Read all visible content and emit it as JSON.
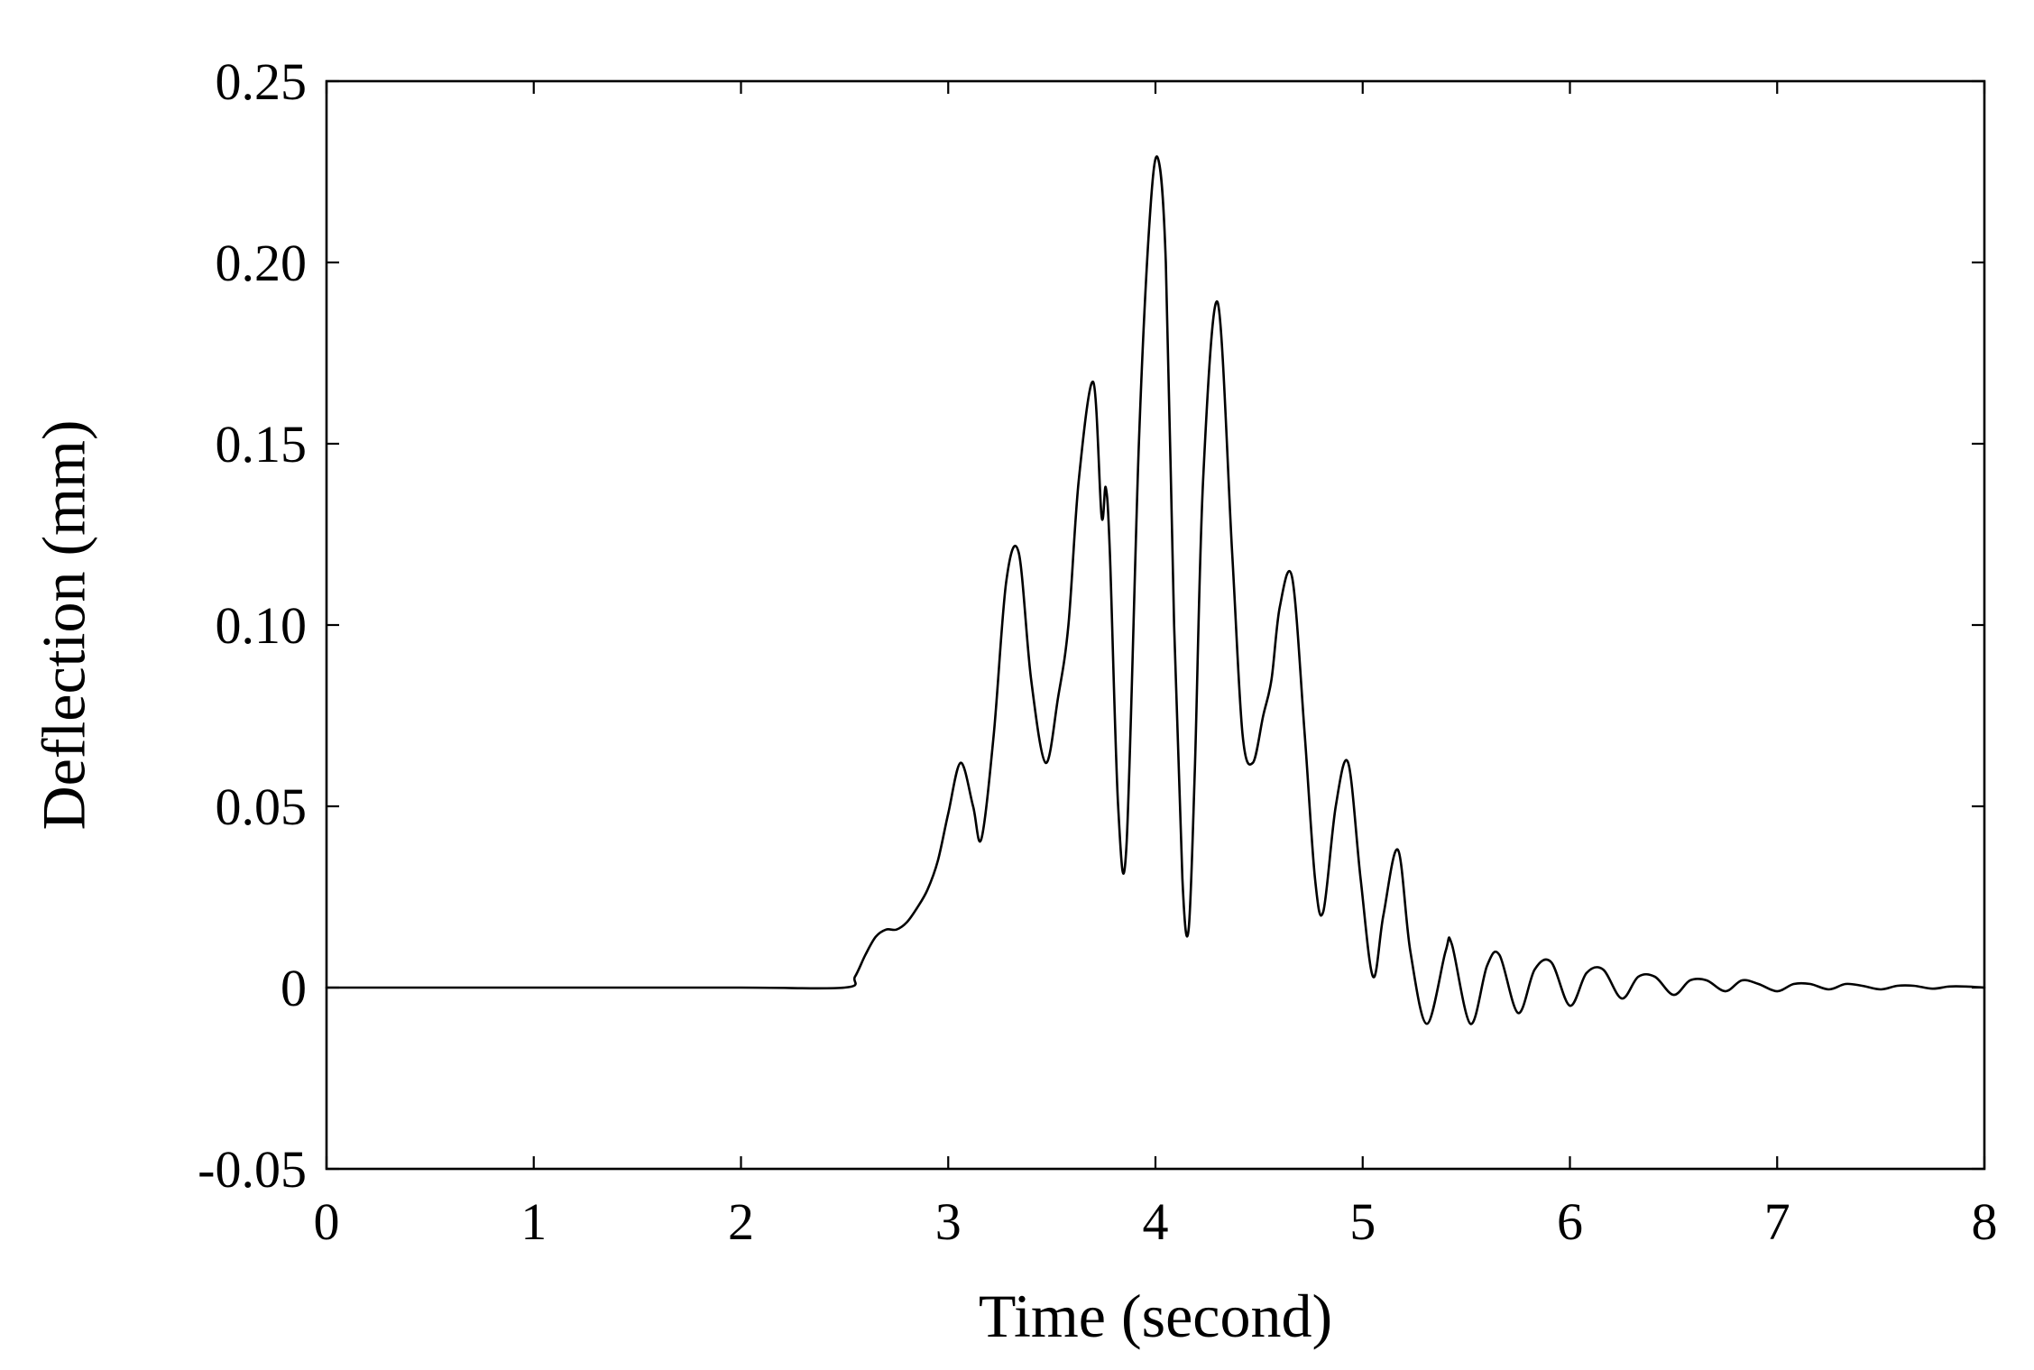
{
  "chart_data": {
    "type": "line",
    "title": "",
    "xlabel": "Time (second)",
    "ylabel": "Deflection (mm)",
    "xlim": [
      0,
      8
    ],
    "ylim": [
      -0.05,
      0.25
    ],
    "grid": false,
    "legend": "none",
    "x_ticks": [
      0,
      1,
      2,
      3,
      4,
      5,
      6,
      7,
      8
    ],
    "x_tick_labels": [
      "0",
      "1",
      "2",
      "3",
      "4",
      "5",
      "6",
      "7",
      "8"
    ],
    "y_ticks": [
      -0.05,
      0,
      0.05,
      0.1,
      0.15,
      0.2,
      0.25
    ],
    "y_tick_labels": [
      "-0.05",
      "0",
      "0.05",
      "0.10",
      "0.15",
      "0.20",
      "0.25"
    ],
    "colors": {
      "line": "#000000",
      "axes": "#000000",
      "background": "#ffffff"
    },
    "series": [
      {
        "x": [
          0,
          1.0,
          2.0,
          2.5,
          2.55,
          2.6,
          2.65,
          2.7,
          2.75,
          2.8,
          2.85,
          2.9,
          2.95,
          3.0,
          3.06,
          3.12,
          3.16,
          3.22,
          3.28,
          3.34,
          3.4,
          3.47,
          3.53,
          3.58,
          3.63,
          3.7,
          3.74,
          3.76,
          3.78,
          3.82,
          3.86,
          3.92,
          3.97,
          4.01,
          4.05,
          4.09,
          4.13,
          4.16,
          4.19,
          4.23,
          4.3,
          4.37,
          4.42,
          4.47,
          4.52,
          4.56,
          4.6,
          4.66,
          4.72,
          4.77,
          4.81,
          4.87,
          4.93,
          4.99,
          5.05,
          5.1,
          5.17,
          5.23,
          5.31,
          5.4,
          5.43,
          5.52,
          5.6,
          5.66,
          5.75,
          5.83,
          5.91,
          6.0,
          6.08,
          6.16,
          6.25,
          6.33,
          6.41,
          6.5,
          6.58,
          6.66,
          6.75,
          6.83,
          6.91,
          7.0,
          7.08,
          7.16,
          7.25,
          7.33,
          7.41,
          7.5,
          7.58,
          7.66,
          7.75,
          7.83,
          7.91,
          8.0
        ],
        "y": [
          0,
          0,
          0,
          0,
          0.003,
          0.009,
          0.014,
          0.016,
          0.016,
          0.018,
          0.022,
          0.027,
          0.035,
          0.048,
          0.062,
          0.05,
          0.041,
          0.07,
          0.112,
          0.12,
          0.085,
          0.062,
          0.08,
          0.1,
          0.14,
          0.167,
          0.13,
          0.138,
          0.12,
          0.05,
          0.039,
          0.15,
          0.21,
          0.229,
          0.2,
          0.1,
          0.03,
          0.016,
          0.06,
          0.14,
          0.189,
          0.12,
          0.07,
          0.062,
          0.075,
          0.085,
          0.105,
          0.113,
          0.07,
          0.03,
          0.021,
          0.05,
          0.062,
          0.03,
          0.003,
          0.02,
          0.038,
          0.01,
          -0.01,
          0.01,
          0.012,
          -0.01,
          0.006,
          0.009,
          -0.007,
          0.005,
          0.007,
          -0.005,
          0.004,
          0.005,
          -0.003,
          0.003,
          0.003,
          -0.002,
          0.002,
          0.002,
          -0.001,
          0.002,
          0.001,
          -0.001,
          0.001,
          0.001,
          -0.0005,
          0.001,
          0.0005,
          -0.0005,
          0.0005,
          0.0005,
          -0.0003,
          0.0003,
          0.0003,
          0
        ]
      }
    ]
  }
}
